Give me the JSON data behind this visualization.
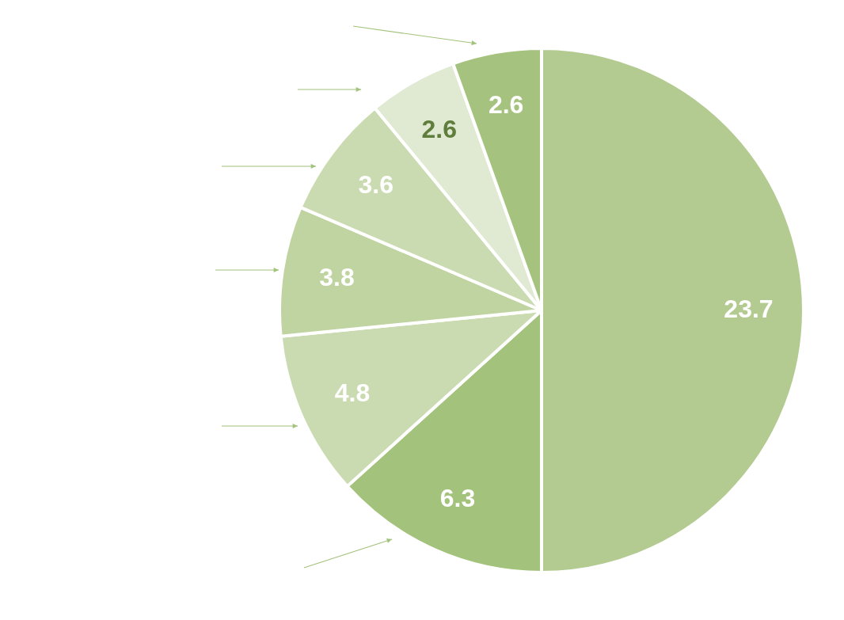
{
  "chart_data": {
    "type": "pie",
    "categories": [
      null,
      null,
      null,
      null,
      null,
      null,
      null
    ],
    "values": [
      23.7,
      6.3,
      4.8,
      3.8,
      3.6,
      2.6,
      2.6
    ],
    "colors": [
      "#b3cb90",
      "#a3c27b",
      "#cbdbb1",
      "#bfd4a1",
      "#cbdbb1",
      "#e0e9d2",
      "#a5c37e"
    ],
    "data_labels": true,
    "legend": false
  }
}
